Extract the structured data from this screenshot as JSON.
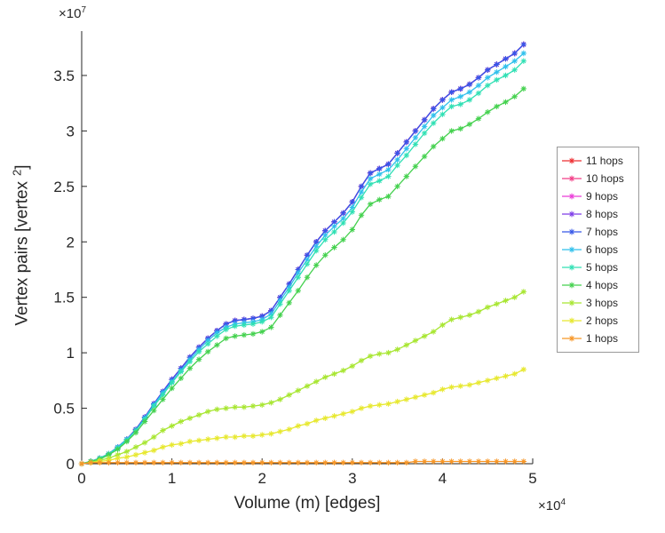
{
  "figure": {
    "background": "#ffffff",
    "axis_color": "#262626",
    "xlabel": "Volume (m) [edges]",
    "ylabel_prefix": "Vertex pairs [vertex",
    "ylabel_sup": "2",
    "ylabel_suffix": "]",
    "x_exponent_base": "×10",
    "x_exponent_sup": "4",
    "y_exponent_base": "×10",
    "y_exponent_sup": "7"
  },
  "chart_data": {
    "type": "line",
    "marker": "asterisk",
    "title": "",
    "xlabel": "Volume (m) [edges]",
    "ylabel": "Vertex pairs [vertex^2]",
    "x_scale_factor": 10000,
    "y_scale_factor": 10000000,
    "xlim": [
      0,
      5
    ],
    "ylim": [
      0,
      3.9
    ],
    "x_ticks": [
      0,
      1,
      2,
      3,
      4,
      5
    ],
    "y_ticks": [
      0,
      0.5,
      1,
      1.5,
      2,
      2.5,
      3,
      3.5
    ],
    "grid": false,
    "legend_position": "right-outside",
    "x": [
      0,
      0.1,
      0.2,
      0.3,
      0.4,
      0.5,
      0.6,
      0.7,
      0.8,
      0.9,
      1,
      1.1,
      1.2,
      1.3,
      1.4,
      1.5,
      1.6,
      1.7,
      1.8,
      1.9,
      2,
      2.1,
      2.2,
      2.3,
      2.4,
      2.5,
      2.6,
      2.7,
      2.8,
      2.9,
      3,
      3.1,
      3.2,
      3.3,
      3.4,
      3.5,
      3.6,
      3.7,
      3.8,
      3.9,
      4,
      4.1,
      4.2,
      4.3,
      4.4,
      4.5,
      4.6,
      4.7,
      4.8,
      4.9
    ],
    "series": [
      {
        "name": "11 hops",
        "color": "#ee2e32",
        "values": [
          0,
          0.02,
          0.05,
          0.09,
          0.15,
          0.22,
          0.31,
          0.42,
          0.54,
          0.65,
          0.76,
          0.86,
          0.96,
          1.05,
          1.13,
          1.2,
          1.26,
          1.29,
          1.3,
          1.31,
          1.33,
          1.38,
          1.5,
          1.62,
          1.75,
          1.88,
          2,
          2.1,
          2.18,
          2.26,
          2.36,
          2.5,
          2.62,
          2.66,
          2.7,
          2.8,
          2.9,
          3,
          3.1,
          3.2,
          3.28,
          3.35,
          3.38,
          3.42,
          3.48,
          3.55,
          3.6,
          3.65,
          3.7,
          3.78
        ]
      },
      {
        "name": "10 hops",
        "color": "#f23d86",
        "values": [
          0,
          0.02,
          0.05,
          0.09,
          0.15,
          0.22,
          0.31,
          0.42,
          0.54,
          0.65,
          0.76,
          0.86,
          0.96,
          1.05,
          1.13,
          1.2,
          1.26,
          1.29,
          1.3,
          1.31,
          1.33,
          1.38,
          1.5,
          1.62,
          1.75,
          1.88,
          2,
          2.1,
          2.18,
          2.26,
          2.36,
          2.5,
          2.62,
          2.66,
          2.7,
          2.8,
          2.9,
          3,
          3.1,
          3.2,
          3.28,
          3.35,
          3.38,
          3.42,
          3.48,
          3.55,
          3.6,
          3.65,
          3.7,
          3.78
        ]
      },
      {
        "name": "9 hops",
        "color": "#ea3cd8",
        "values": [
          0,
          0.02,
          0.05,
          0.09,
          0.15,
          0.22,
          0.31,
          0.42,
          0.54,
          0.65,
          0.76,
          0.86,
          0.96,
          1.05,
          1.13,
          1.2,
          1.26,
          1.29,
          1.3,
          1.31,
          1.33,
          1.38,
          1.5,
          1.62,
          1.75,
          1.88,
          2,
          2.1,
          2.18,
          2.26,
          2.36,
          2.5,
          2.62,
          2.66,
          2.7,
          2.8,
          2.9,
          3,
          3.1,
          3.2,
          3.28,
          3.35,
          3.38,
          3.42,
          3.48,
          3.55,
          3.6,
          3.65,
          3.7,
          3.78
        ]
      },
      {
        "name": "8 hops",
        "color": "#7e3ce8",
        "values": [
          0,
          0.02,
          0.05,
          0.09,
          0.15,
          0.22,
          0.31,
          0.42,
          0.54,
          0.65,
          0.76,
          0.86,
          0.96,
          1.05,
          1.13,
          1.2,
          1.26,
          1.29,
          1.3,
          1.31,
          1.33,
          1.38,
          1.5,
          1.62,
          1.75,
          1.88,
          2,
          2.1,
          2.18,
          2.26,
          2.36,
          2.5,
          2.62,
          2.66,
          2.7,
          2.8,
          2.9,
          3,
          3.1,
          3.2,
          3.28,
          3.35,
          3.38,
          3.42,
          3.48,
          3.55,
          3.6,
          3.65,
          3.7,
          3.78
        ]
      },
      {
        "name": "7 hops",
        "color": "#3657e8",
        "values": [
          0,
          0.02,
          0.05,
          0.09,
          0.15,
          0.22,
          0.31,
          0.42,
          0.54,
          0.65,
          0.76,
          0.86,
          0.96,
          1.05,
          1.13,
          1.2,
          1.26,
          1.29,
          1.3,
          1.31,
          1.33,
          1.38,
          1.5,
          1.62,
          1.75,
          1.88,
          2,
          2.1,
          2.18,
          2.26,
          2.36,
          2.5,
          2.62,
          2.66,
          2.7,
          2.8,
          2.9,
          3,
          3.1,
          3.2,
          3.28,
          3.35,
          3.38,
          3.42,
          3.48,
          3.55,
          3.6,
          3.65,
          3.7,
          3.78
        ]
      },
      {
        "name": "6 hops",
        "color": "#2fc0ec",
        "values": [
          0,
          0.02,
          0.05,
          0.09,
          0.15,
          0.22,
          0.3,
          0.41,
          0.53,
          0.64,
          0.74,
          0.84,
          0.94,
          1.03,
          1.11,
          1.18,
          1.23,
          1.26,
          1.27,
          1.28,
          1.3,
          1.35,
          1.47,
          1.59,
          1.72,
          1.84,
          1.96,
          2.06,
          2.14,
          2.21,
          2.31,
          2.45,
          2.57,
          2.61,
          2.65,
          2.74,
          2.84,
          2.94,
          3.04,
          3.14,
          3.21,
          3.28,
          3.31,
          3.35,
          3.41,
          3.48,
          3.53,
          3.58,
          3.63,
          3.7
        ]
      },
      {
        "name": "5 hops",
        "color": "#30e0b4",
        "values": [
          0,
          0.02,
          0.05,
          0.09,
          0.14,
          0.21,
          0.3,
          0.4,
          0.52,
          0.62,
          0.73,
          0.83,
          0.92,
          1.01,
          1.08,
          1.15,
          1.21,
          1.24,
          1.25,
          1.26,
          1.28,
          1.32,
          1.44,
          1.56,
          1.68,
          1.8,
          1.92,
          2.02,
          2.09,
          2.17,
          2.27,
          2.4,
          2.52,
          2.55,
          2.59,
          2.69,
          2.78,
          2.88,
          2.98,
          3.07,
          3.15,
          3.22,
          3.24,
          3.28,
          3.34,
          3.41,
          3.46,
          3.5,
          3.55,
          3.63
        ]
      },
      {
        "name": "4 hops",
        "color": "#44d14e",
        "values": [
          0,
          0.02,
          0.04,
          0.08,
          0.13,
          0.2,
          0.28,
          0.38,
          0.48,
          0.58,
          0.68,
          0.77,
          0.86,
          0.94,
          1.01,
          1.07,
          1.13,
          1.15,
          1.16,
          1.17,
          1.19,
          1.23,
          1.34,
          1.45,
          1.56,
          1.68,
          1.79,
          1.88,
          1.95,
          2.02,
          2.11,
          2.24,
          2.34,
          2.38,
          2.41,
          2.5,
          2.59,
          2.68,
          2.77,
          2.86,
          2.93,
          3,
          3.02,
          3.06,
          3.11,
          3.17,
          3.22,
          3.26,
          3.31,
          3.38
        ]
      },
      {
        "name": "3 hops",
        "color": "#a8e632",
        "values": [
          0,
          0.01,
          0.03,
          0.05,
          0.08,
          0.11,
          0.15,
          0.19,
          0.24,
          0.3,
          0.34,
          0.38,
          0.41,
          0.44,
          0.47,
          0.49,
          0.5,
          0.51,
          0.51,
          0.52,
          0.53,
          0.55,
          0.58,
          0.62,
          0.66,
          0.7,
          0.74,
          0.78,
          0.81,
          0.84,
          0.88,
          0.93,
          0.97,
          0.99,
          1,
          1.03,
          1.07,
          1.11,
          1.15,
          1.19,
          1.25,
          1.3,
          1.32,
          1.34,
          1.37,
          1.41,
          1.44,
          1.47,
          1.5,
          1.55
        ]
      },
      {
        "name": "2 hops",
        "color": "#e7e82e",
        "values": [
          0,
          0.01,
          0.02,
          0.03,
          0.05,
          0.06,
          0.08,
          0.1,
          0.12,
          0.15,
          0.17,
          0.18,
          0.2,
          0.21,
          0.22,
          0.23,
          0.24,
          0.24,
          0.25,
          0.25,
          0.26,
          0.27,
          0.29,
          0.31,
          0.34,
          0.36,
          0.39,
          0.41,
          0.43,
          0.45,
          0.47,
          0.5,
          0.52,
          0.53,
          0.54,
          0.56,
          0.58,
          0.6,
          0.62,
          0.64,
          0.67,
          0.69,
          0.7,
          0.71,
          0.73,
          0.75,
          0.77,
          0.79,
          0.81,
          0.85
        ]
      },
      {
        "name": "1 hops",
        "color": "#f79626",
        "values": [
          0,
          0.01,
          0.01,
          0.01,
          0.01,
          0.01,
          0.01,
          0.01,
          0.01,
          0.01,
          0.01,
          0.01,
          0.01,
          0.01,
          0.01,
          0.01,
          0.01,
          0.01,
          0.01,
          0.01,
          0.01,
          0.01,
          0.01,
          0.01,
          0.01,
          0.01,
          0.01,
          0.01,
          0.01,
          0.01,
          0.01,
          0.01,
          0.01,
          0.01,
          0.01,
          0.01,
          0.01,
          0.02,
          0.02,
          0.02,
          0.02,
          0.02,
          0.02,
          0.02,
          0.02,
          0.02,
          0.02,
          0.02,
          0.02,
          0.02
        ]
      }
    ]
  }
}
